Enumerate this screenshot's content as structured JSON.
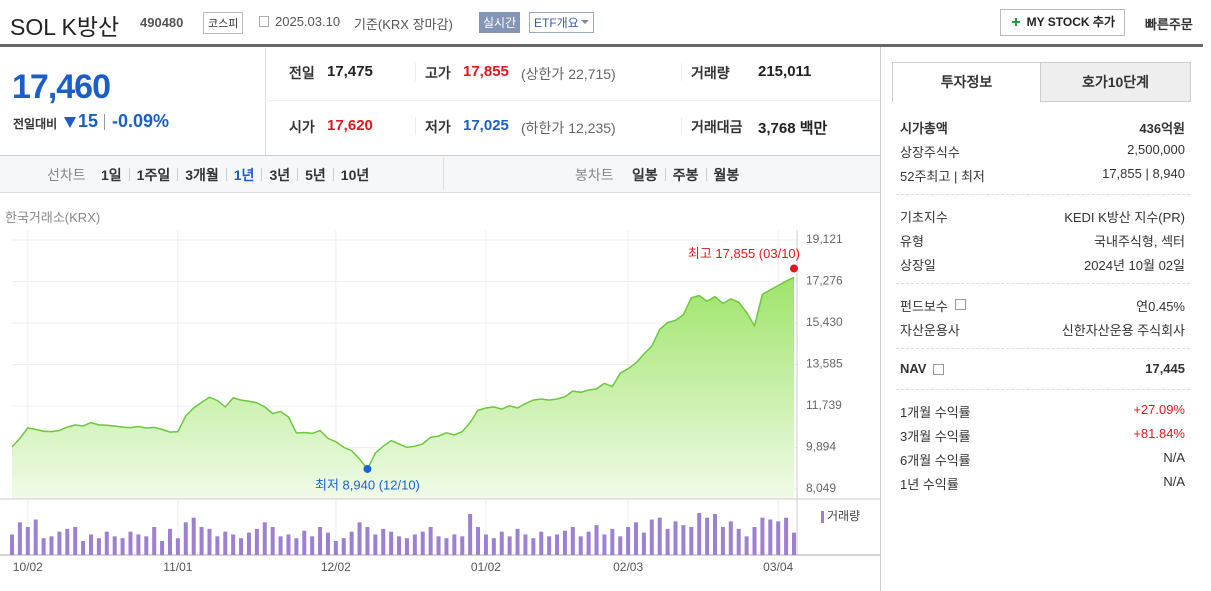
{
  "header": {
    "name": "SOL K방산",
    "code": "490480",
    "market": "코스피",
    "date": "2025.03.10",
    "basis": "기준(KRX 장마감)",
    "realtime": "실시간",
    "etf": "ETF개요",
    "my_stock": "MY STOCK 추가",
    "quick_order": "빠른주문"
  },
  "price": {
    "current": "17,460",
    "change_label": "전일대비",
    "change": "15",
    "rate": "-0.09%"
  },
  "stats": [
    [
      {
        "label": "전일",
        "value": "17,475"
      },
      {
        "label": "고가",
        "value": "17,855",
        "color": "#e0161e",
        "note": "(상한가 22,715)"
      },
      {
        "label": "거래량",
        "value": "215,011"
      }
    ],
    [
      {
        "label": "시가",
        "value": "17,620",
        "color": "#e0161e"
      },
      {
        "label": "저가",
        "value": "17,025",
        "color": "#1a5ec8",
        "note": "(하한가 12,235)"
      },
      {
        "label": "거래대금",
        "value": "3,768 백만"
      }
    ]
  ],
  "tabs": {
    "line_label": "선차트",
    "periods": [
      "1일",
      "1주일",
      "3개월",
      "1년",
      "3년",
      "5년",
      "10년"
    ],
    "active_period": 3,
    "candle_label": "봉차트",
    "candles": [
      "일봉",
      "주봉",
      "월봉"
    ]
  },
  "chart_data": {
    "type": "line",
    "source": "한국거래소(KRX)",
    "color": "#6cc83c",
    "grid": true,
    "categories": [
      null,
      null,
      "10/02",
      null,
      null,
      null,
      null,
      null,
      null,
      null,
      null,
      null,
      null,
      null,
      null,
      null,
      null,
      null,
      null,
      null,
      null,
      "11/01",
      null,
      null,
      null,
      null,
      null,
      null,
      null,
      null,
      null,
      null,
      null,
      null,
      null,
      null,
      null,
      null,
      null,
      null,
      null,
      "12/02",
      null,
      null,
      null,
      null,
      null,
      null,
      null,
      null,
      null,
      null,
      null,
      null,
      null,
      null,
      null,
      null,
      null,
      null,
      "01/02",
      null,
      null,
      null,
      null,
      null,
      null,
      null,
      null,
      null,
      null,
      null,
      null,
      null,
      null,
      null,
      null,
      null,
      "02/03",
      null,
      null,
      null,
      null,
      null,
      null,
      null,
      null,
      null,
      null,
      null,
      null,
      null,
      null,
      null,
      null,
      null,
      null,
      "03/04",
      null,
      null
    ],
    "values": [
      9920,
      10300,
      10760,
      10700,
      10620,
      10600,
      10650,
      10800,
      10900,
      10850,
      11000,
      10900,
      10880,
      10850,
      10800,
      10780,
      10830,
      10760,
      10790,
      10700,
      10580,
      10600,
      11300,
      11650,
      11900,
      12130,
      11980,
      11700,
      12100,
      12000,
      11950,
      11880,
      11700,
      11400,
      11500,
      11250,
      10540,
      10560,
      10520,
      10650,
      10300,
      10150,
      9900,
      9750,
      9380,
      8940,
      9650,
      9950,
      10200,
      10050,
      9900,
      9950,
      10050,
      10350,
      10400,
      10550,
      10450,
      10600,
      11000,
      11550,
      11650,
      11700,
      11600,
      11750,
      11650,
      11850,
      12000,
      12050,
      12000,
      12050,
      12150,
      12400,
      12350,
      12450,
      12500,
      12750,
      12600,
      13200,
      13400,
      13650,
      14050,
      14400,
      15150,
      15450,
      15550,
      15800,
      16550,
      16650,
      16400,
      16600,
      16300,
      16500,
      16350,
      15900,
      15300,
      16700,
      16900,
      17100,
      17300,
      17460
    ],
    "ylim": [
      8049,
      19121
    ],
    "yticks": [
      {
        "value": 8049,
        "label": "8,049"
      },
      {
        "value": 9894,
        "label": "9,894"
      },
      {
        "value": 11739,
        "label": "11,739"
      },
      {
        "value": 13585,
        "label": "13,585"
      },
      {
        "value": 15430,
        "label": "15,430"
      },
      {
        "value": 17276,
        "label": "17,276"
      },
      {
        "value": 19121,
        "label": "19,121"
      }
    ],
    "annotations": [
      {
        "text": "최고 17,855 (03/10)",
        "value": 17855,
        "color": "#e0161e"
      },
      {
        "text": "최저 8,940 (12/10)",
        "value": 8940,
        "color": "#1a62d6"
      }
    ],
    "volume": {
      "type": "bar",
      "name": "거래량",
      "color": "#9d80d2",
      "values": [
        22,
        35,
        30,
        38,
        18,
        20,
        25,
        28,
        30,
        15,
        22,
        18,
        25,
        20,
        18,
        25,
        22,
        20,
        30,
        15,
        28,
        18,
        35,
        40,
        30,
        28,
        20,
        25,
        22,
        18,
        24,
        28,
        35,
        30,
        20,
        22,
        18,
        26,
        20,
        30,
        24,
        15,
        18,
        25,
        35,
        30,
        22,
        28,
        25,
        20,
        18,
        22,
        25,
        30,
        20,
        18,
        22,
        20,
        44,
        30,
        22,
        18,
        25,
        20,
        28,
        22,
        18,
        25,
        20,
        22,
        26,
        30,
        20,
        25,
        32,
        22,
        28,
        20,
        30,
        35,
        24,
        38,
        40,
        28,
        36,
        32,
        30,
        45,
        40,
        44,
        30,
        36,
        28,
        20,
        30,
        40,
        38,
        36,
        40,
        24
      ]
    }
  },
  "panel": {
    "tabs": [
      "투자정보",
      "호가10단계"
    ],
    "groups": [
      [
        {
          "label": "시가총액",
          "value": "436억원",
          "bold": true
        },
        {
          "label": "상장주식수",
          "value": "2,500,000"
        },
        {
          "label": "52주최고 | 최저",
          "value": "17,855 | 8,940"
        }
      ],
      [
        {
          "label": "기초지수",
          "value": "KEDI K방산 지수(PR)"
        },
        {
          "label": "유형",
          "value": "국내주식형, 섹터"
        },
        {
          "label": "상장일",
          "value": "2024년 10월 02일"
        }
      ],
      [
        {
          "label": "펀드보수",
          "value": "연0.45%",
          "help": true
        },
        {
          "label": "자산운용사",
          "value": "신한자산운용 주식회사"
        }
      ],
      [
        {
          "label": "NAV",
          "value": "17,445",
          "help": true,
          "bold": true
        }
      ],
      [
        {
          "label": "1개월 수익률",
          "value": "+27.09%",
          "color": "#e0161e"
        },
        {
          "label": "3개월 수익률",
          "value": "+81.84%",
          "color": "#e0161e"
        },
        {
          "label": "6개월 수익률",
          "value": "N/A"
        },
        {
          "label": "1년 수익률",
          "value": "N/A"
        }
      ]
    ]
  }
}
